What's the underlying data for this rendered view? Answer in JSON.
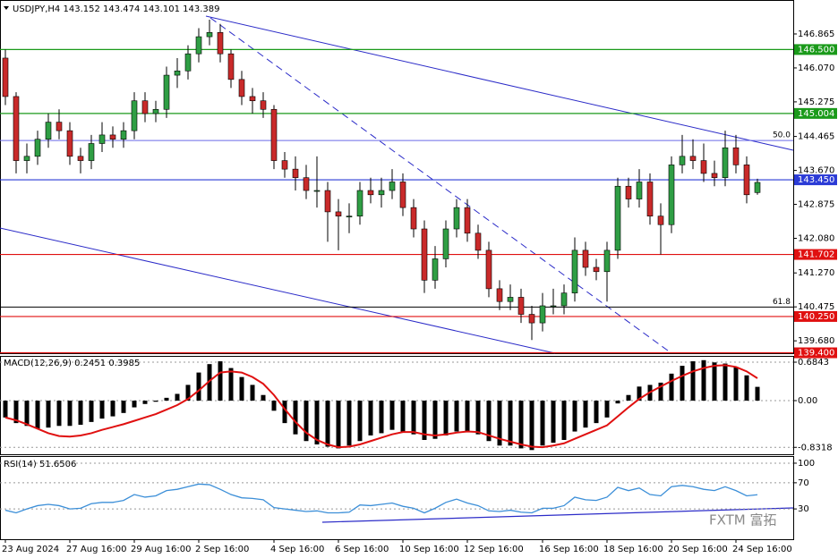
{
  "chart_data": [
    {
      "type": "candlestick",
      "title": "USDJPY,H4",
      "ylim": [
        139.39,
        147.66
      ],
      "yticks": [
        146.865,
        {
          "value": 146.07,
          "label": "146.070"
        },
        145.275,
        144.465,
        {
          "value": 143.67,
          "label": "143.670"
        },
        142.875,
        {
          "value": 142.08,
          "label": "142.080"
        },
        {
          "value": 141.27,
          "label": "141.270"
        },
        140.475,
        {
          "value": 139.68,
          "label": "139.680"
        }
      ],
      "bull_color": "#2f9e44",
      "bear_color": "#c92a2a",
      "categories": [
        "23 Aug 2024",
        null,
        null,
        null,
        null,
        null,
        "27 Aug 16:00",
        null,
        null,
        null,
        null,
        null,
        "29 Aug 16:00",
        null,
        null,
        null,
        null,
        null,
        "2 Sep 16:00",
        null,
        null,
        null,
        null,
        null,
        null,
        "4 Sep 16:00",
        null,
        null,
        null,
        null,
        null,
        "6 Sep 16:00",
        null,
        null,
        null,
        null,
        null,
        "10 Sep 16:00",
        null,
        null,
        null,
        null,
        null,
        "12 Sep 16:00",
        null,
        null,
        null,
        null,
        null,
        null,
        "16 Sep 16:00",
        null,
        null,
        null,
        null,
        null,
        "18 Sep 16:00",
        null,
        null,
        null,
        null,
        null,
        "20 Sep 16:00",
        null,
        null,
        null,
        null,
        null,
        "24 Sep 16:00",
        null,
        null
      ],
      "candles": [
        [
          146.3,
          146.5,
          145.2,
          145.4
        ],
        [
          145.4,
          145.5,
          143.6,
          143.9
        ],
        [
          143.9,
          144.3,
          143.6,
          144.0
        ],
        [
          144.0,
          144.6,
          143.8,
          144.4
        ],
        [
          144.4,
          145.0,
          144.2,
          144.8
        ],
        [
          144.8,
          145.1,
          144.4,
          144.6
        ],
        [
          144.6,
          144.8,
          143.8,
          144.0
        ],
        [
          144.0,
          144.2,
          143.6,
          143.9
        ],
        [
          143.9,
          144.5,
          143.7,
          144.3
        ],
        [
          144.3,
          144.8,
          144.1,
          144.5
        ],
        [
          144.5,
          144.7,
          144.2,
          144.4
        ],
        [
          144.4,
          144.8,
          144.2,
          144.6
        ],
        [
          144.6,
          145.5,
          144.4,
          145.3
        ],
        [
          145.3,
          145.5,
          144.8,
          145.0
        ],
        [
          145.0,
          145.3,
          144.8,
          145.1
        ],
        [
          145.1,
          146.1,
          144.9,
          145.9
        ],
        [
          145.9,
          146.3,
          145.6,
          146.0
        ],
        [
          146.0,
          146.6,
          145.8,
          146.4
        ],
        [
          146.4,
          147.0,
          146.2,
          146.8
        ],
        [
          146.8,
          147.2,
          146.6,
          146.9
        ],
        [
          146.9,
          147.1,
          146.2,
          146.4
        ],
        [
          146.4,
          146.5,
          145.6,
          145.8
        ],
        [
          145.8,
          146.0,
          145.2,
          145.4
        ],
        [
          145.4,
          145.6,
          145.0,
          145.3
        ],
        [
          145.3,
          145.5,
          144.9,
          145.1
        ],
        [
          145.1,
          145.2,
          143.7,
          143.9
        ],
        [
          143.9,
          144.1,
          143.5,
          143.7
        ],
        [
          143.7,
          144.0,
          143.2,
          143.5
        ],
        [
          143.5,
          143.8,
          143.0,
          143.2
        ],
        [
          143.2,
          144.0,
          142.8,
          143.2
        ],
        [
          143.2,
          143.4,
          142.0,
          142.7
        ],
        [
          142.7,
          143.0,
          141.8,
          142.6
        ],
        [
          142.6,
          142.9,
          142.2,
          142.6
        ],
        [
          142.6,
          143.4,
          142.4,
          143.2
        ],
        [
          143.2,
          143.5,
          142.9,
          143.1
        ],
        [
          143.1,
          143.5,
          142.8,
          143.2
        ],
        [
          143.2,
          143.7,
          143.0,
          143.4
        ],
        [
          143.4,
          143.6,
          142.6,
          142.8
        ],
        [
          142.8,
          143.0,
          142.1,
          142.3
        ],
        [
          142.3,
          142.5,
          140.8,
          141.1
        ],
        [
          141.1,
          141.9,
          140.9,
          141.6
        ],
        [
          141.6,
          142.5,
          141.4,
          142.3
        ],
        [
          142.3,
          143.0,
          142.1,
          142.8
        ],
        [
          142.8,
          143.0,
          142.0,
          142.2
        ],
        [
          142.2,
          142.4,
          141.6,
          141.8
        ],
        [
          141.8,
          142.0,
          140.7,
          140.9
        ],
        [
          140.9,
          141.1,
          140.4,
          140.6
        ],
        [
          140.6,
          141.0,
          140.4,
          140.7
        ],
        [
          140.7,
          140.9,
          140.1,
          140.3
        ],
        [
          140.3,
          140.5,
          139.7,
          140.1
        ],
        [
          140.1,
          140.8,
          139.9,
          140.5
        ],
        [
          140.5,
          140.9,
          140.3,
          140.5
        ],
        [
          140.5,
          141.0,
          140.3,
          140.8
        ],
        [
          140.8,
          142.1,
          140.6,
          141.8
        ],
        [
          141.8,
          142.0,
          141.2,
          141.4
        ],
        [
          141.4,
          141.6,
          141.1,
          141.3
        ],
        [
          141.3,
          142.0,
          140.6,
          141.8
        ],
        [
          141.8,
          143.5,
          141.6,
          143.3
        ],
        [
          143.3,
          143.5,
          142.8,
          143.0
        ],
        [
          143.0,
          143.7,
          142.8,
          143.4
        ],
        [
          143.4,
          143.6,
          142.4,
          142.6
        ],
        [
          142.6,
          142.9,
          141.7,
          142.4
        ],
        [
          142.4,
          144.0,
          142.2,
          143.8
        ],
        [
          143.8,
          144.5,
          143.6,
          144.0
        ],
        [
          144.0,
          144.4,
          143.7,
          143.9
        ],
        [
          143.9,
          144.3,
          143.4,
          143.6
        ],
        [
          143.6,
          143.9,
          143.3,
          143.5
        ],
        [
          143.5,
          144.6,
          143.3,
          144.2
        ],
        [
          144.2,
          144.5,
          143.6,
          143.8
        ],
        [
          143.8,
          144.0,
          142.9,
          143.1
        ],
        [
          143.152,
          143.474,
          143.101,
          143.389
        ]
      ],
      "levels": [
        {
          "value": 146.5,
          "label": "146.500",
          "color": "#1a9a1a"
        },
        {
          "value": 145.004,
          "label": "145.004",
          "color": "#1a9a1a"
        },
        {
          "value": 143.45,
          "label": "143.450",
          "color": "#2b3bd6"
        },
        {
          "value": 141.702,
          "label": "141.702",
          "color": "#e01010"
        },
        {
          "value": 140.25,
          "label": "140.250",
          "color": "#e01010"
        },
        {
          "value": 139.4,
          "label": "139.400",
          "color": "#e01010"
        }
      ],
      "fib_levels": [
        {
          "value": 144.37,
          "name": "50.0",
          "color": "#6a6ae8"
        },
        {
          "value": 140.47,
          "name": "61.8",
          "color": "#000000"
        }
      ],
      "watermark": "FXTM 富拓"
    },
    {
      "type": "macd",
      "title": "MACD(12,26,9)",
      "ylim": [
        -0.955,
        0.796
      ],
      "yticks": [
        0.6843,
        {
          "value": 0,
          "label": "0.00"
        },
        -0.8318
      ],
      "color": "#000000",
      "values": [
        -0.3,
        -0.4,
        -0.45,
        -0.5,
        -0.48,
        -0.45,
        -0.45,
        -0.43,
        -0.38,
        -0.32,
        -0.28,
        -0.22,
        -0.12,
        -0.06,
        -0.02,
        0.05,
        0.12,
        0.28,
        0.5,
        0.65,
        0.7,
        0.58,
        0.42,
        0.28,
        0.1,
        -0.18,
        -0.4,
        -0.6,
        -0.72,
        -0.78,
        -0.82,
        -0.85,
        -0.8,
        -0.72,
        -0.62,
        -0.58,
        -0.52,
        -0.55,
        -0.6,
        -0.7,
        -0.68,
        -0.62,
        -0.55,
        -0.55,
        -0.6,
        -0.72,
        -0.8,
        -0.8,
        -0.85,
        -0.88,
        -0.8,
        -0.75,
        -0.7,
        -0.55,
        -0.48,
        -0.4,
        -0.3,
        -0.05,
        0.1,
        0.25,
        0.28,
        0.32,
        0.48,
        0.62,
        0.7,
        0.72,
        0.68,
        0.66,
        0.6,
        0.45,
        0.2451
      ],
      "signal": {
        "color": "#e01010",
        "values": [
          -0.3,
          -0.35,
          -0.42,
          -0.5,
          -0.58,
          -0.63,
          -0.64,
          -0.62,
          -0.58,
          -0.52,
          -0.47,
          -0.42,
          -0.36,
          -0.3,
          -0.24,
          -0.16,
          -0.08,
          0.03,
          0.18,
          0.35,
          0.5,
          0.52,
          0.5,
          0.42,
          0.3,
          0.1,
          -0.15,
          -0.38,
          -0.57,
          -0.7,
          -0.78,
          -0.83,
          -0.82,
          -0.78,
          -0.72,
          -0.66,
          -0.6,
          -0.56,
          -0.56,
          -0.6,
          -0.62,
          -0.6,
          -0.57,
          -0.55,
          -0.56,
          -0.62,
          -0.68,
          -0.73,
          -0.78,
          -0.82,
          -0.83,
          -0.8,
          -0.76,
          -0.68,
          -0.6,
          -0.52,
          -0.44,
          -0.28,
          -0.12,
          0.03,
          0.15,
          0.25,
          0.35,
          0.44,
          0.52,
          0.58,
          0.62,
          0.63,
          0.6,
          0.52,
          0.3985
        ]
      }
    },
    {
      "type": "line",
      "title": "RSI(14)",
      "ylim": [
        -16.4,
        110.9
      ],
      "yticks": [
        100,
        70,
        30
      ],
      "color": "#3c8fd8",
      "values": [
        28,
        24,
        30,
        35,
        37,
        35,
        30,
        31,
        38,
        40,
        40,
        43,
        52,
        48,
        50,
        58,
        60,
        64,
        68,
        67,
        60,
        52,
        47,
        46,
        44,
        32,
        30,
        28,
        26,
        27,
        24,
        24,
        25,
        36,
        35,
        37,
        39,
        34,
        31,
        24,
        31,
        40,
        45,
        39,
        35,
        27,
        26,
        28,
        25,
        24,
        31,
        31,
        35,
        48,
        44,
        43,
        48,
        63,
        58,
        62,
        52,
        50,
        64,
        66,
        64,
        60,
        58,
        64,
        58,
        50,
        51.6506
      ]
    }
  ]
}
